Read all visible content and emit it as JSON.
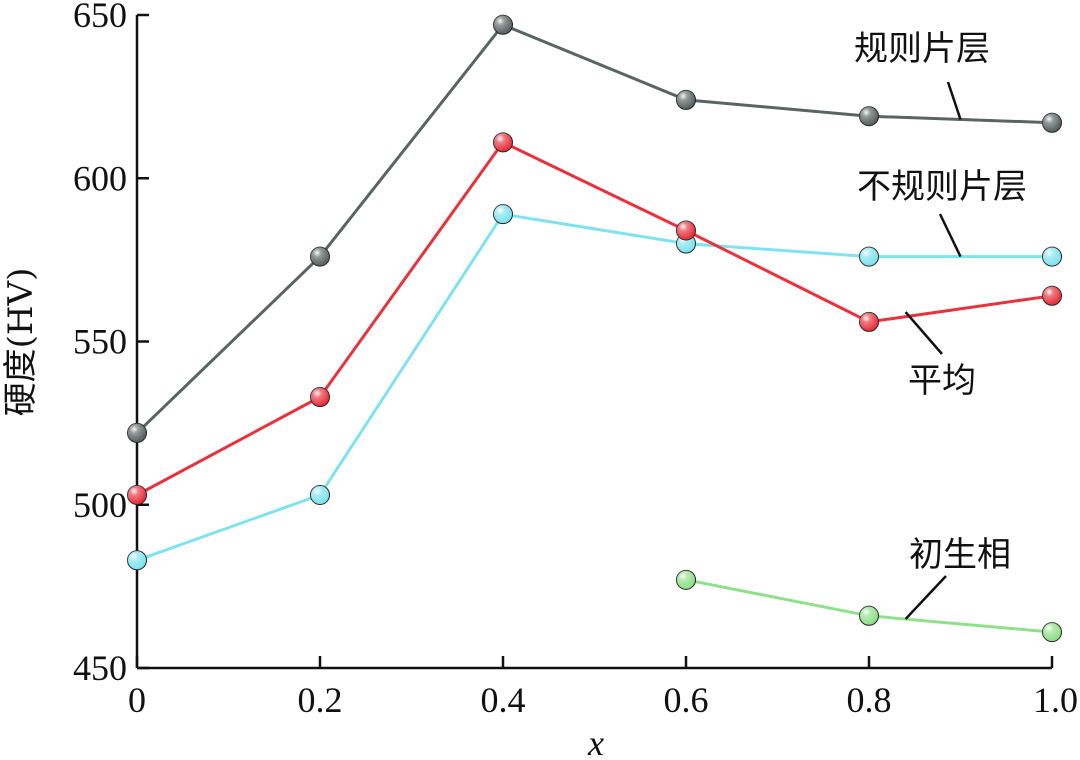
{
  "chart_data": {
    "type": "line",
    "xlabel": "x",
    "ylabel": "硬度(HV)",
    "xlim": [
      0,
      1.0
    ],
    "ylim": [
      450,
      650
    ],
    "x_ticks": [
      0,
      0.2,
      0.4,
      0.6,
      0.8,
      1.0
    ],
    "x_tick_labels": [
      "0",
      "0.2",
      "0.4",
      "0.6",
      "0.8",
      "1.0"
    ],
    "y_ticks": [
      450,
      500,
      550,
      600,
      650
    ],
    "y_tick_labels": [
      "450",
      "500",
      "550",
      "600",
      "650"
    ],
    "grid": false,
    "legend": "inline labels with leader lines",
    "series": [
      {
        "name": "规则片层",
        "color": "#5a6462",
        "x": [
          0,
          0.2,
          0.4,
          0.6,
          0.8,
          1.0
        ],
        "values": [
          522,
          576,
          647,
          624,
          619,
          617
        ]
      },
      {
        "name": "不规则片层",
        "color": "#7fe3ef",
        "x": [
          0,
          0.2,
          0.4,
          0.6,
          0.8,
          1.0
        ],
        "values": [
          483,
          503,
          589,
          580,
          576,
          576
        ]
      },
      {
        "name": "平均",
        "color": "#e8323e",
        "x": [
          0,
          0.2,
          0.4,
          0.6,
          0.8,
          1.0
        ],
        "values": [
          503,
          533,
          611,
          584,
          556,
          564
        ]
      },
      {
        "name": "初生相",
        "color": "#8fe08a",
        "x": [
          0.6,
          0.8,
          1.0
        ],
        "values": [
          477,
          466,
          461
        ]
      }
    ]
  }
}
